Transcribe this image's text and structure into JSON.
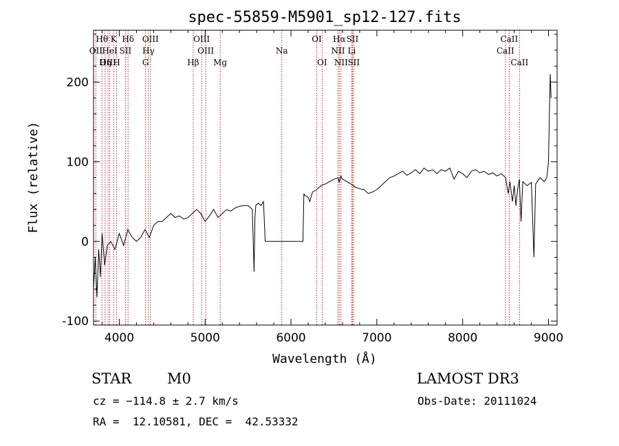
{
  "chart_data": {
    "type": "line",
    "title": "spec-55859-M5901_sp12-127.fits",
    "xlabel": "Wavelength (Å)",
    "ylabel": "Flux (relative)",
    "xlim": [
      3700,
      9100
    ],
    "ylim": [
      -105,
      265
    ],
    "xticks": [
      4000,
      5000,
      6000,
      7000,
      8000,
      9000
    ],
    "yticks": [
      -100,
      0,
      100,
      200
    ],
    "series": [
      {
        "name": "flux",
        "x": [
          3700,
          3720,
          3740,
          3760,
          3780,
          3800,
          3830,
          3860,
          3900,
          3950,
          4000,
          4050,
          4100,
          4150,
          4200,
          4250,
          4300,
          4350,
          4400,
          4450,
          4500,
          4550,
          4600,
          4650,
          4700,
          4750,
          4800,
          4850,
          4900,
          4950,
          5000,
          5050,
          5100,
          5150,
          5200,
          5250,
          5300,
          5350,
          5400,
          5450,
          5500,
          5550,
          5570,
          5580,
          5590,
          5620,
          5650,
          5680,
          5700,
          5720,
          5800,
          5900,
          6000,
          6100,
          6140,
          6150,
          6160,
          6200,
          6220,
          6250,
          6300,
          6350,
          6400,
          6450,
          6500,
          6550,
          6563,
          6580,
          6600,
          6650,
          6700,
          6750,
          6800,
          6850,
          6900,
          6950,
          7000,
          7050,
          7100,
          7150,
          7200,
          7250,
          7300,
          7350,
          7400,
          7450,
          7500,
          7550,
          7600,
          7650,
          7700,
          7750,
          7800,
          7850,
          7900,
          7950,
          8000,
          8050,
          8100,
          8150,
          8200,
          8250,
          8300,
          8350,
          8400,
          8450,
          8500,
          8530,
          8550,
          8580,
          8600,
          8620,
          8640,
          8660,
          8680,
          8700,
          8750,
          8800,
          8830,
          8850,
          8900,
          8950,
          8980,
          9000,
          9010,
          9020,
          9030
        ],
        "y": [
          -60,
          -20,
          -70,
          -10,
          -45,
          10,
          -30,
          -5,
          0,
          -10,
          10,
          -5,
          15,
          5,
          0,
          5,
          15,
          5,
          20,
          25,
          25,
          30,
          35,
          30,
          32,
          28,
          30,
          35,
          40,
          35,
          25,
          32,
          40,
          30,
          35,
          40,
          38,
          42,
          44,
          45,
          45,
          40,
          -38,
          30,
          45,
          48,
          45,
          50,
          0,
          0,
          0,
          0,
          0,
          0,
          0,
          60,
          58,
          55,
          50,
          62,
          65,
          70,
          72,
          75,
          78,
          80,
          74,
          82,
          78,
          75,
          72,
          68,
          66,
          65,
          60,
          62,
          65,
          70,
          75,
          80,
          82,
          85,
          88,
          83,
          86,
          90,
          85,
          92,
          88,
          90,
          85,
          90,
          88,
          92,
          78,
          88,
          85,
          80,
          88,
          90,
          86,
          88,
          84,
          86,
          82,
          85,
          80,
          60,
          75,
          50,
          70,
          45,
          65,
          78,
          25,
          75,
          70,
          74,
          -20,
          72,
          80,
          75,
          80,
          100,
          160,
          210,
          180
        ]
      }
    ],
    "lines": [
      {
        "label": "Hθ",
        "wavelength": 3798,
        "row": 1
      },
      {
        "label": "K",
        "wavelength": 3934,
        "row": 1
      },
      {
        "label": "Hδ",
        "wavelength": 4102,
        "row": 1
      },
      {
        "label": "OII",
        "wavelength": 3727,
        "row": 2
      },
      {
        "label": "HeI",
        "wavelength": 3889,
        "row": 2
      },
      {
        "label": "SII",
        "wavelength": 4072,
        "row": 2
      },
      {
        "label": "OIII",
        "wavelength": 3869,
        "row": 3
      },
      {
        "label": "Hη",
        "wavelength": 3835,
        "row": 3
      },
      {
        "label": "H",
        "wavelength": 3969,
        "row": 3
      },
      {
        "label": "OIII",
        "wavelength": 4363,
        "row": 1
      },
      {
        "label": "Hγ",
        "wavelength": 4340,
        "row": 2
      },
      {
        "label": "G",
        "wavelength": 4305,
        "row": 3
      },
      {
        "label": "OIII",
        "wavelength": 4959,
        "row": 1
      },
      {
        "label": "OIII",
        "wavelength": 5007,
        "row": 2
      },
      {
        "label": "Hβ",
        "wavelength": 4861,
        "row": 3
      },
      {
        "label": "Mg",
        "wavelength": 5175,
        "row": 3
      },
      {
        "label": "Na",
        "wavelength": 5893,
        "row": 2
      },
      {
        "label": "OI",
        "wavelength": 6300,
        "row": 1
      },
      {
        "label": "OI",
        "wavelength": 6363,
        "row": 3
      },
      {
        "label": "Hα",
        "wavelength": 6563,
        "row": 1
      },
      {
        "label": "SII",
        "wavelength": 6716,
        "row": 1
      },
      {
        "label": "NII",
        "wavelength": 6548,
        "row": 2
      },
      {
        "label": "Li",
        "wavelength": 6708,
        "row": 2
      },
      {
        "label": "NII",
        "wavelength": 6583,
        "row": 3
      },
      {
        "label": "SII",
        "wavelength": 6731,
        "row": 3
      },
      {
        "label": "CaII",
        "wavelength": 8542,
        "row": 1
      },
      {
        "label": "CaII",
        "wavelength": 8498,
        "row": 2
      },
      {
        "label": "CaII",
        "wavelength": 8662,
        "row": 3
      }
    ],
    "colors": {
      "spectrum": "#000000",
      "line_marker": "#c00000",
      "axis": "#000000"
    }
  },
  "info": {
    "class": "STAR",
    "subclass": "M0",
    "survey": "LAMOST DR3",
    "cz": "cz = −114.8 ± 2.7 km/s",
    "obs_date": "Obs-Date: 20111024",
    "coords": "RA =  12.10581, DEC =  42.53332"
  }
}
